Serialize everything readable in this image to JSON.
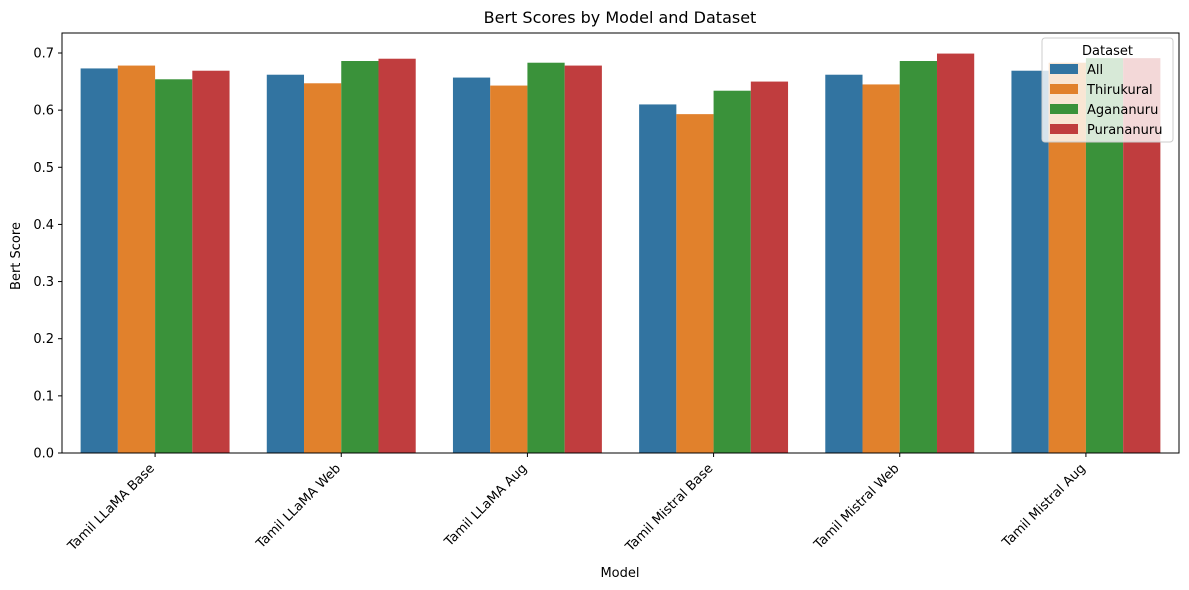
{
  "chart_data": {
    "type": "bar",
    "title": "Bert Scores by Model and Dataset",
    "xlabel": "Model",
    "ylabel": "Bert Score",
    "ylim": [
      0,
      0.735
    ],
    "yticks": [
      0.0,
      0.1,
      0.2,
      0.3,
      0.4,
      0.5,
      0.6,
      0.7
    ],
    "ytick_labels": [
      "0.0",
      "0.1",
      "0.2",
      "0.3",
      "0.4",
      "0.5",
      "0.6",
      "0.7"
    ],
    "categories": [
      "Tamil LLaMA Base",
      "Tamil LLaMA Web",
      "Tamil LLaMA Aug",
      "Tamil Mistral Base",
      "Tamil Mistral Web",
      "Tamil Mistral Aug"
    ],
    "legend_title": "Dataset",
    "legend_position": "top-right",
    "grid": false,
    "series": [
      {
        "name": "All",
        "color": "#3274a1",
        "values": [
          0.673,
          0.662,
          0.657,
          0.61,
          0.662,
          0.669
        ]
      },
      {
        "name": "Thirukural",
        "color": "#e1812c",
        "values": [
          0.678,
          0.647,
          0.643,
          0.593,
          0.645,
          0.683
        ]
      },
      {
        "name": "Agananuru",
        "color": "#3a923a",
        "values": [
          0.654,
          0.686,
          0.683,
          0.634,
          0.686,
          0.691
        ]
      },
      {
        "name": "Purananuru",
        "color": "#c03d3e",
        "values": [
          0.669,
          0.69,
          0.678,
          0.65,
          0.699,
          0.691
        ]
      }
    ]
  }
}
